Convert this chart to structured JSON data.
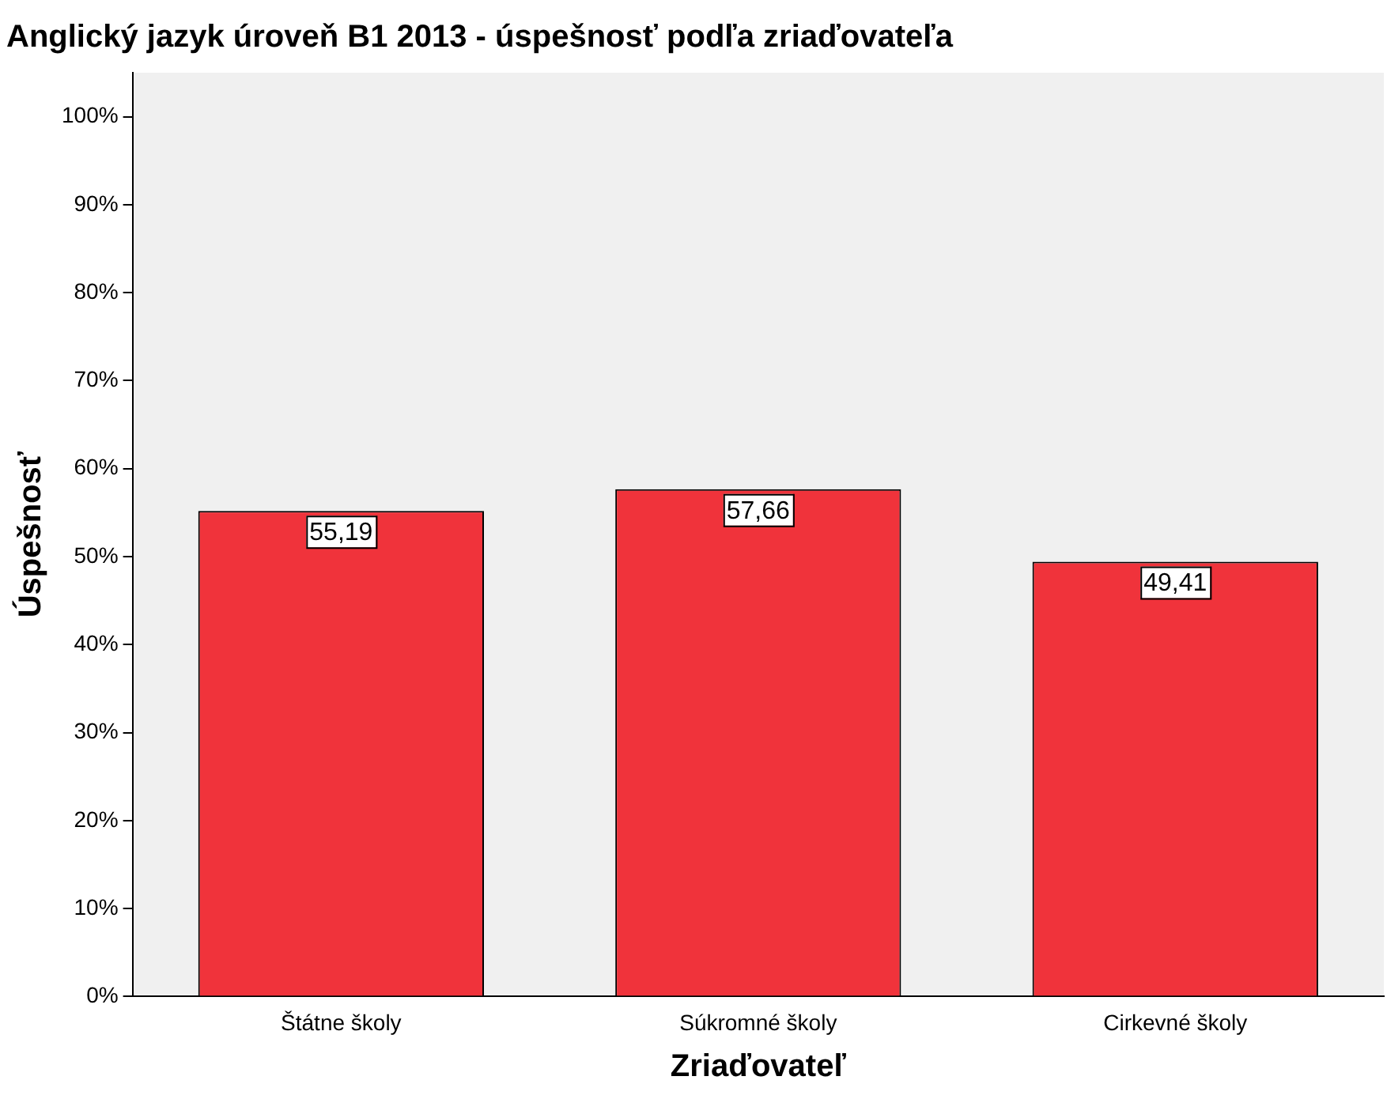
{
  "chart_data": {
    "type": "bar",
    "title": "Anglický jazyk úroveň B1 2013 - úspešnosť podľa zriaďovateľa",
    "xlabel": "Zriaďovateľ",
    "ylabel": "Úspešnosť",
    "categories": [
      "Štátne školy",
      "Súkromné školy",
      "Cirkevné školy"
    ],
    "values": [
      55.19,
      57.66,
      49.41
    ],
    "color": "#f0333b",
    "value_labels": [
      "55,19",
      "57,66",
      "49,41"
    ],
    "ylim": [
      0,
      105
    ],
    "yticks": [
      {
        "value": 0,
        "label": "0%"
      },
      {
        "value": 10,
        "label": "10%"
      },
      {
        "value": 20,
        "label": "20%"
      },
      {
        "value": 30,
        "label": "30%"
      },
      {
        "value": 40,
        "label": "40%"
      },
      {
        "value": 50,
        "label": "50%"
      },
      {
        "value": 60,
        "label": "60%"
      },
      {
        "value": 70,
        "label": "70%"
      },
      {
        "value": 80,
        "label": "80%"
      },
      {
        "value": 90,
        "label": "90%"
      },
      {
        "value": 100,
        "label": "100%"
      }
    ],
    "grid": false,
    "legend": false
  }
}
